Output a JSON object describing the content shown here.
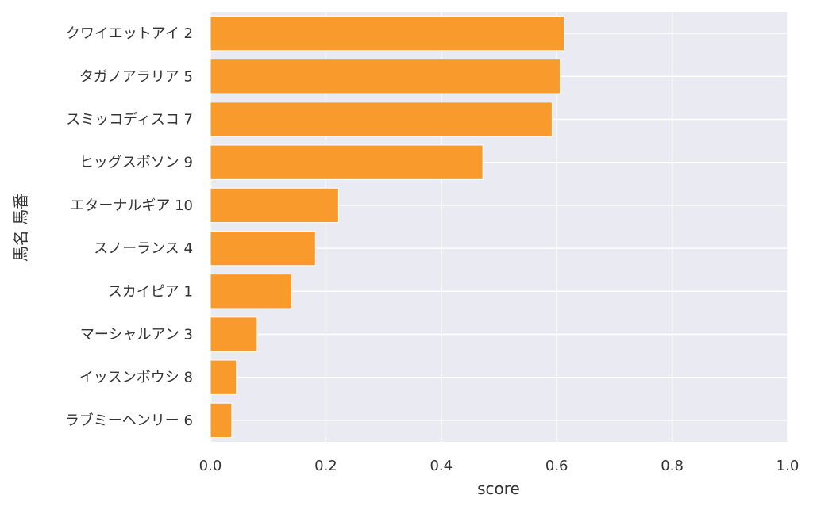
{
  "chart_data": {
    "type": "bar",
    "orientation": "horizontal",
    "categories": [
      "クワイエットアイ 2",
      "タガノアラリア 5",
      "スミッコディスコ 7",
      "ヒッグスボソン 9",
      "エターナルギア 10",
      "スノーランス 4",
      "スカイピア 1",
      "マーシャルアン 3",
      "イッスンボウシ 8",
      "ラブミーヘンリー 6"
    ],
    "values": [
      0.613,
      0.606,
      0.592,
      0.472,
      0.222,
      0.182,
      0.141,
      0.081,
      0.045,
      0.037
    ],
    "xlabel": "score",
    "ylabel": "馬名 馬番",
    "xlim": [
      0.0,
      1.0
    ],
    "xticks": [
      "0.0",
      "0.2",
      "0.4",
      "0.6",
      "0.8",
      "1.0"
    ],
    "grid": true,
    "colors": {
      "bar": "#F99B2C",
      "bar_edge": "#FFFFFF",
      "plot_background": "#EAEAF2",
      "grid": "#FFFFFF"
    }
  }
}
